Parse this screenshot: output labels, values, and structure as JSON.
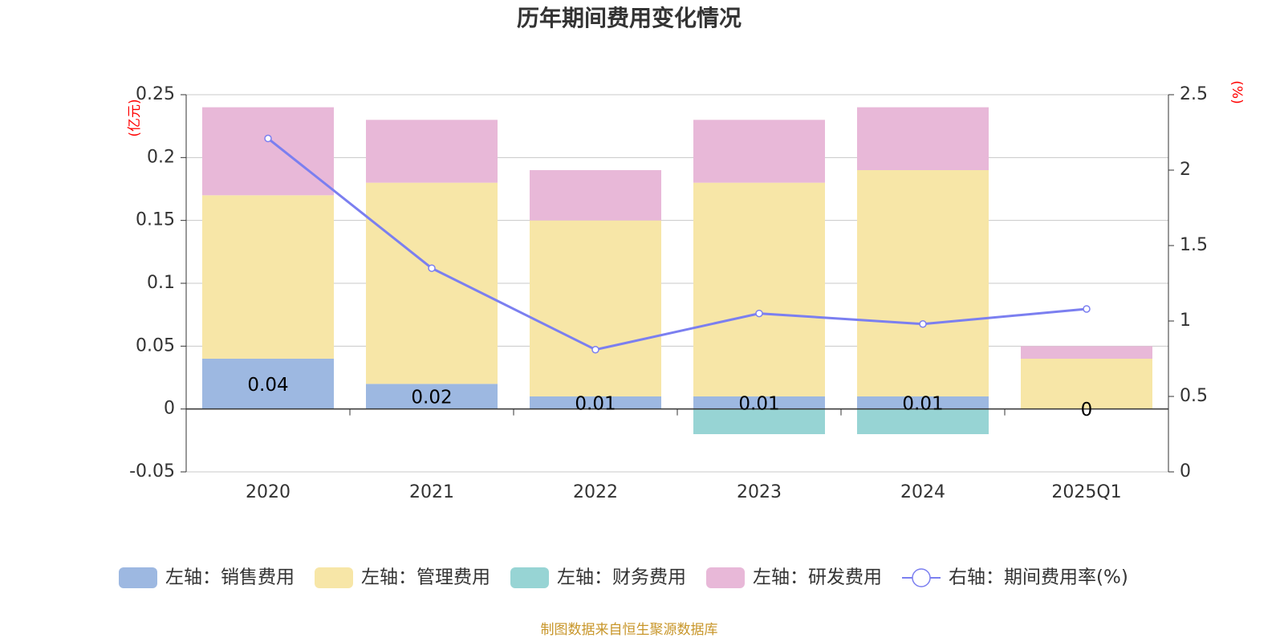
{
  "chart_data": {
    "type": "bar",
    "title": "历年期间费用变化情况",
    "categories": [
      "2020",
      "2021",
      "2022",
      "2023",
      "2024",
      "2025Q1"
    ],
    "left_axis": {
      "unit_label": "(亿元)",
      "ylim": [
        -0.05,
        0.25
      ],
      "ticks": [
        -0.05,
        0,
        0.05,
        0.1,
        0.15,
        0.2,
        0.25
      ],
      "tick_labels": [
        "-0.05",
        "0",
        "0.05",
        "0.1",
        "0.15",
        "0.2",
        "0.25"
      ]
    },
    "right_axis": {
      "unit_label": "(%)",
      "ylim": [
        0,
        2.5
      ],
      "ticks": [
        0,
        0.5,
        1,
        1.5,
        2,
        2.5
      ],
      "tick_labels": [
        "0",
        "0.5",
        "1",
        "1.5",
        "2",
        "2.5"
      ]
    },
    "series": [
      {
        "name": "左轴：销售费用",
        "type": "bar",
        "color": "#9db8e1",
        "values": [
          0.04,
          0.02,
          0.01,
          0.01,
          0.01,
          0
        ],
        "data_labels": [
          "0.04",
          "0.02",
          "0.01",
          "0.01",
          "0.01",
          "0"
        ]
      },
      {
        "name": "左轴：管理费用",
        "type": "bar",
        "color": "#f7e6a7",
        "values": [
          0.13,
          0.16,
          0.14,
          0.17,
          0.18,
          0.04
        ]
      },
      {
        "name": "左轴：财务费用",
        "type": "bar",
        "color": "#97d4d4",
        "values": [
          0,
          0,
          0,
          -0.02,
          -0.02,
          0
        ]
      },
      {
        "name": "左轴：研发费用",
        "type": "bar",
        "color": "#e8b8d8",
        "values": [
          0.07,
          0.05,
          0.04,
          0.05,
          0.05,
          0.01
        ]
      },
      {
        "name": "右轴：期间费用率(%)",
        "type": "line",
        "color": "#7b7ff0",
        "values": [
          2.21,
          1.35,
          0.81,
          1.05,
          0.98,
          1.08
        ]
      }
    ],
    "grid": true,
    "legend_position": "bottom"
  },
  "footer": {
    "source": "制图数据来自恒生聚源数据库"
  }
}
